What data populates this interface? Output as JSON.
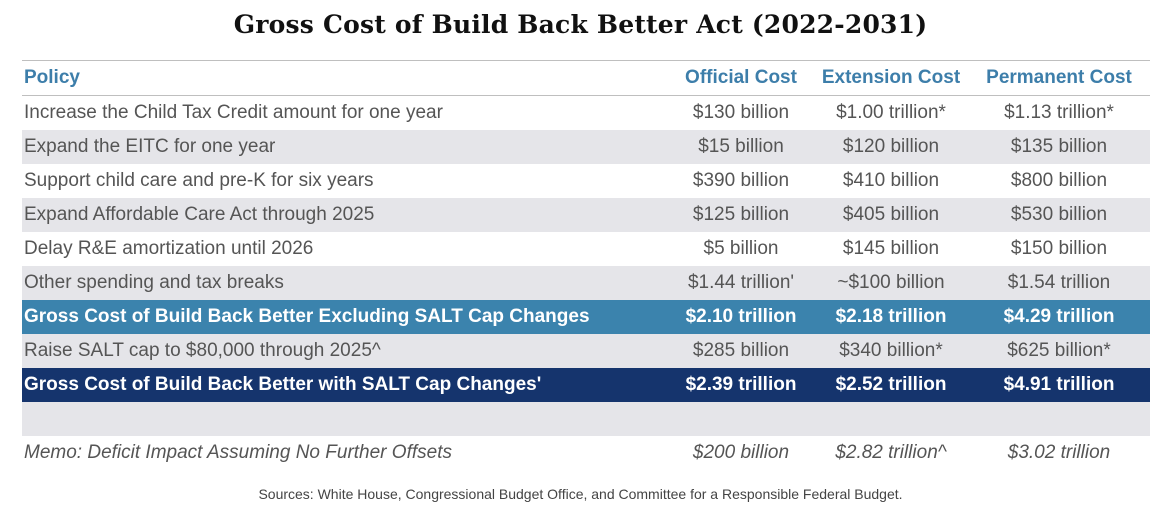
{
  "title": "Gross Cost of Build Back Better Act (2022-2031)",
  "headers": [
    "Policy",
    "Official Cost",
    "Extension Cost",
    "Permanent Cost"
  ],
  "rows": [
    {
      "style": "plain",
      "cells": [
        "Increase the Child Tax Credit amount for one year",
        "$130 billion",
        "$1.00 trillion*",
        "$1.13 trillion*"
      ]
    },
    {
      "style": "stripe",
      "cells": [
        "Expand the EITC for one year",
        "$15 billion",
        "$120 billion",
        "$135 billion"
      ]
    },
    {
      "style": "plain",
      "cells": [
        "Support child care and pre-K for six years",
        "$390 billion",
        "$410 billion",
        "$800 billion"
      ]
    },
    {
      "style": "stripe",
      "cells": [
        "Expand Affordable Care Act through 2025",
        "$125 billion",
        "$405 billion",
        "$530 billion"
      ]
    },
    {
      "style": "plain",
      "cells": [
        "Delay R&E amortization until 2026",
        "$5 billion",
        "$145 billion",
        "$150 billion"
      ]
    },
    {
      "style": "stripe",
      "cells": [
        "Other spending and tax breaks",
        "$1.44 trillion'",
        "~$100 billion",
        "$1.54 trillion"
      ]
    },
    {
      "style": "hl1",
      "cells": [
        "Gross Cost of Build Back Better Excluding SALT Cap Changes",
        "$2.10 trillion",
        "$2.18 trillion",
        "$4.29 trillion"
      ]
    },
    {
      "style": "stripe",
      "cells": [
        "Raise SALT cap to $80,000 through 2025^",
        "$285 billion",
        "$340 billion*",
        "$625 billion*"
      ]
    },
    {
      "style": "hl2",
      "cells": [
        "Gross Cost of Build Back Better with SALT Cap Changes'",
        "$2.39 trillion",
        "$2.52 trillion",
        "$4.91 trillion"
      ]
    },
    {
      "style": "stripe",
      "cells": [
        "",
        "",
        "",
        ""
      ]
    },
    {
      "style": "memo",
      "cells": [
        "Memo: Deficit Impact Assuming No Further Offsets",
        "$200 billion",
        "$2.82 trillion^",
        "$3.02 trillion"
      ]
    }
  ],
  "source": "Sources: White House, Congressional Budget Office, and Committee for a Responsible Federal Budget.",
  "colors": {
    "header_text": "#3d7eaa",
    "stripe": "#e5e5e9",
    "highlight_excluding_salt": "#3b83ad",
    "highlight_with_salt": "#15346d"
  }
}
